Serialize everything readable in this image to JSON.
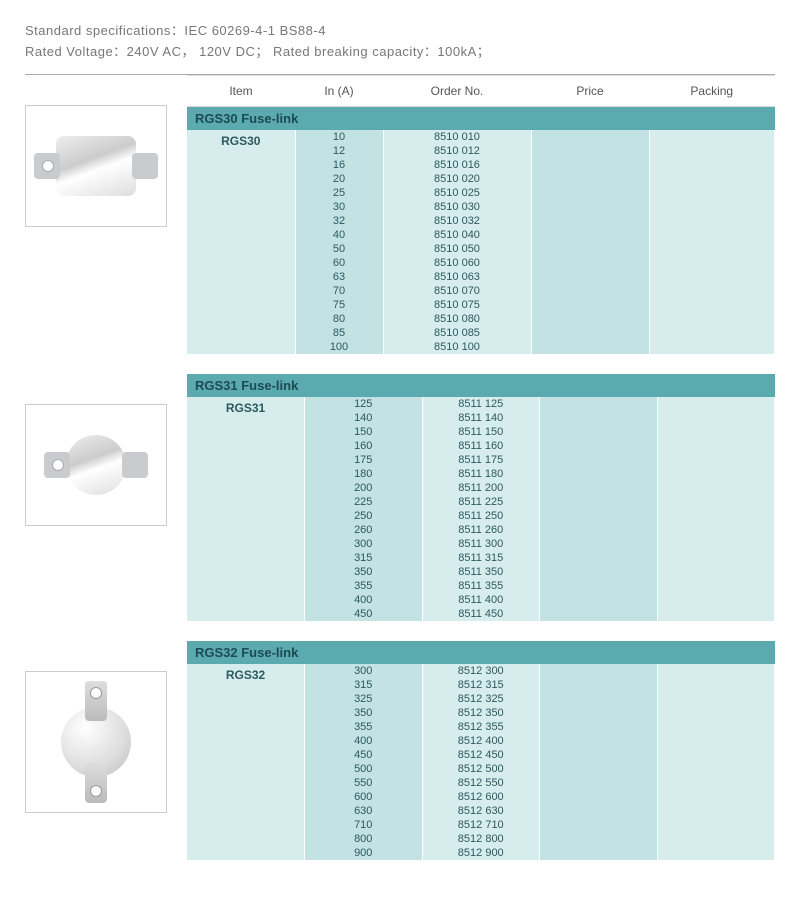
{
  "specs": {
    "line1": "Standard specifications：IEC 60269-4-1 BS88-4",
    "line2": "Rated Voltage：240V AC， 120V DC； Rated breaking capacity：100kA；"
  },
  "columns": {
    "item": "Item",
    "in_a": "In (A)",
    "order": "Order No.",
    "price": "Price",
    "packing": "Packing"
  },
  "colors": {
    "group_header_bg": "#5aaab0",
    "group_header_text": "#1c4b51",
    "stripe_a": "#d7eced",
    "stripe_b": "#c3e2e3",
    "cell_text": "#2b5a5e"
  },
  "groups": [
    {
      "title": "RGS30 Fuse-link",
      "item": "RGS30",
      "rows": [
        {
          "in": "10",
          "order": "8510 010"
        },
        {
          "in": "12",
          "order": "8510 012"
        },
        {
          "in": "16",
          "order": "8510 016"
        },
        {
          "in": "20",
          "order": "8510 020"
        },
        {
          "in": "25",
          "order": "8510 025"
        },
        {
          "in": "30",
          "order": "8510 030"
        },
        {
          "in": "32",
          "order": "8510 032"
        },
        {
          "in": "40",
          "order": "8510 040"
        },
        {
          "in": "50",
          "order": "8510 050"
        },
        {
          "in": "60",
          "order": "8510 060"
        },
        {
          "in": "63",
          "order": "8510 063"
        },
        {
          "in": "70",
          "order": "8510 070"
        },
        {
          "in": "75",
          "order": "8510 075"
        },
        {
          "in": "80",
          "order": "8510 080"
        },
        {
          "in": "85",
          "order": "8510 085"
        },
        {
          "in": "100",
          "order": "8510 100"
        }
      ]
    },
    {
      "title": "RGS31 Fuse-link",
      "item": "RGS31",
      "rows": [
        {
          "in": "125",
          "order": "8511 125"
        },
        {
          "in": "140",
          "order": "8511 140"
        },
        {
          "in": "150",
          "order": "8511 150"
        },
        {
          "in": "160",
          "order": "8511 160"
        },
        {
          "in": "175",
          "order": "8511 175"
        },
        {
          "in": "180",
          "order": "8511 180"
        },
        {
          "in": "200",
          "order": "8511 200"
        },
        {
          "in": "225",
          "order": "8511 225"
        },
        {
          "in": "250",
          "order": "8511 250"
        },
        {
          "in": "260",
          "order": "8511 260"
        },
        {
          "in": "300",
          "order": "8511 300"
        },
        {
          "in": "315",
          "order": "8511 315"
        },
        {
          "in": "350",
          "order": "8511 350"
        },
        {
          "in": "355",
          "order": "8511 355"
        },
        {
          "in": "400",
          "order": "8511 400"
        },
        {
          "in": "450",
          "order": "8511 450"
        }
      ]
    },
    {
      "title": "RGS32 Fuse-link",
      "item": "RGS32",
      "rows": [
        {
          "in": "300",
          "order": "8512 300"
        },
        {
          "in": "315",
          "order": "8512 315"
        },
        {
          "in": "325",
          "order": "8512 325"
        },
        {
          "in": "350",
          "order": "8512 350"
        },
        {
          "in": "355",
          "order": "8512 355"
        },
        {
          "in": "400",
          "order": "8512 400"
        },
        {
          "in": "450",
          "order": "8512 450"
        },
        {
          "in": "500",
          "order": "8512 500"
        },
        {
          "in": "550",
          "order": "8512 550"
        },
        {
          "in": "600",
          "order": "8512 600"
        },
        {
          "in": "630",
          "order": "8512 630"
        },
        {
          "in": "710",
          "order": "8512 710"
        },
        {
          "in": "800",
          "order": "8512 800"
        },
        {
          "in": "900",
          "order": "8512 900"
        }
      ]
    }
  ]
}
